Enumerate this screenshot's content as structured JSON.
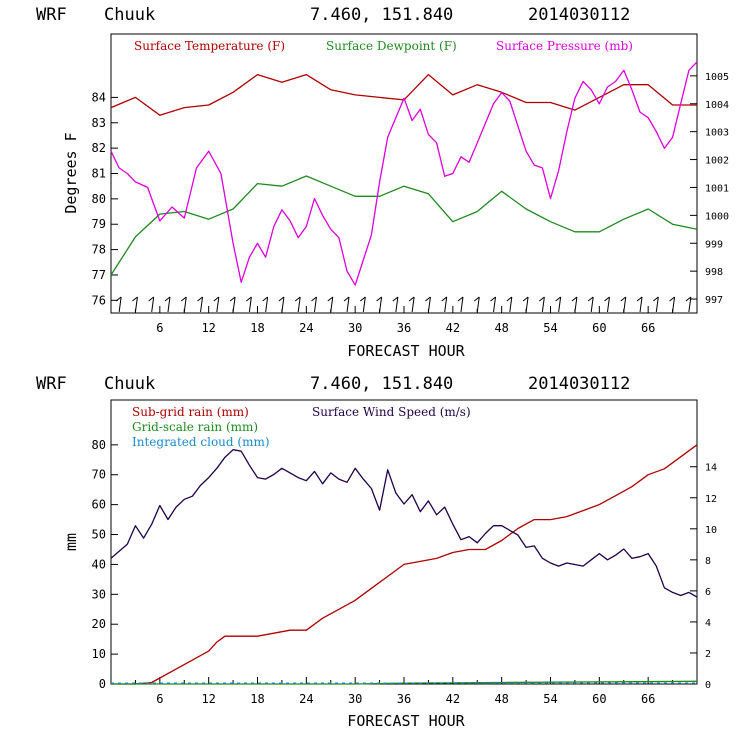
{
  "header_top": {
    "model": "WRF",
    "station": "Chuuk",
    "coords": "7.460, 151.840",
    "run": "2014030112"
  },
  "header_bottom": {
    "model": "WRF",
    "station": "Chuuk",
    "coords": "7.460, 151.840",
    "run": "2014030112"
  },
  "colors": {
    "temperature": "#b00000",
    "dewpoint": "#1f8a1f",
    "pressure": "#dd00dd",
    "subgrid_rain": "#b00000",
    "gridscale_rain": "#1f8a1f",
    "cloud": "#1a8ad0",
    "wind": "#22004a",
    "wind_barb": "#000000"
  },
  "chart_data": [
    {
      "type": "line",
      "xlabel": "FORECAST HOUR",
      "ylabel": "Degrees F",
      "xlim": [
        0,
        72
      ],
      "ylim": [
        75.5,
        86.5
      ],
      "y2lim": [
        996.5,
        1006.5
      ],
      "xticks": [
        6,
        12,
        18,
        24,
        30,
        36,
        42,
        48,
        54,
        60,
        66
      ],
      "yticks": [
        76,
        77,
        78,
        79,
        80,
        81,
        82,
        83,
        84
      ],
      "y2ticks": [
        997,
        998,
        999,
        1000,
        1001,
        1002,
        1003,
        1004,
        1005
      ],
      "series": [
        {
          "name": "Surface Temperature (F)",
          "axis": "left",
          "x": [
            0,
            3,
            6,
            9,
            12,
            15,
            18,
            21,
            24,
            27,
            30,
            33,
            36,
            39,
            42,
            45,
            48,
            51,
            54,
            57,
            60,
            63,
            66,
            69,
            72
          ],
          "y": [
            83.6,
            84.0,
            83.3,
            83.6,
            83.7,
            84.2,
            84.9,
            84.6,
            84.9,
            84.3,
            84.1,
            84.0,
            83.9,
            84.9,
            84.1,
            84.5,
            84.2,
            83.8,
            83.8,
            83.5,
            84.0,
            84.5,
            84.5,
            83.7,
            83.7
          ]
        },
        {
          "name": "Surface Dewpoint (F)",
          "axis": "left",
          "x": [
            0,
            3,
            6,
            9,
            12,
            15,
            18,
            21,
            24,
            27,
            30,
            33,
            36,
            39,
            42,
            45,
            48,
            51,
            54,
            57,
            60,
            63,
            66,
            69,
            72
          ],
          "y": [
            77.0,
            78.5,
            79.4,
            79.5,
            79.2,
            79.6,
            80.6,
            80.5,
            80.9,
            80.5,
            80.1,
            80.1,
            80.5,
            80.2,
            79.1,
            79.5,
            80.3,
            79.6,
            79.1,
            78.7,
            78.7,
            79.2,
            79.6,
            79.0,
            78.8
          ]
        },
        {
          "name": "Surface Pressure (mb)",
          "axis": "right",
          "x": [
            0,
            1,
            2,
            3,
            4.5,
            6,
            7.5,
            9,
            10.5,
            12,
            13.5,
            15,
            16,
            17,
            18,
            19,
            20,
            21,
            22,
            23,
            24,
            25,
            26,
            27,
            28,
            29,
            30,
            31,
            32,
            33,
            34,
            36,
            37,
            38,
            39,
            40,
            41,
            42,
            43,
            44,
            45,
            46,
            47,
            48,
            49,
            50,
            51,
            52,
            53,
            54,
            55,
            56,
            57,
            58,
            59,
            60,
            61,
            62,
            63,
            64,
            65,
            66,
            67,
            68,
            69,
            70,
            71,
            72
          ],
          "y": [
            1002.3,
            1001.7,
            1001.5,
            1001.2,
            1001.0,
            999.8,
            1000.3,
            999.9,
            1001.7,
            1002.3,
            1001.5,
            999.0,
            997.6,
            998.5,
            999.0,
            998.5,
            999.6,
            1000.2,
            999.8,
            999.2,
            999.6,
            1000.6,
            1000.0,
            999.5,
            999.2,
            998.0,
            997.5,
            998.4,
            999.3,
            1001.2,
            1002.8,
            1004.2,
            1003.4,
            1003.8,
            1002.9,
            1002.6,
            1001.4,
            1001.5,
            1002.1,
            1001.9,
            1002.6,
            1003.3,
            1004.0,
            1004.4,
            1004.1,
            1003.2,
            1002.3,
            1001.8,
            1001.7,
            1000.6,
            1001.6,
            1003.0,
            1004.2,
            1004.8,
            1004.5,
            1004.0,
            1004.6,
            1004.8,
            1005.2,
            1004.5,
            1003.7,
            1003.5,
            1003.0,
            1002.4,
            1002.8,
            1004.0,
            1005.2,
            1005.5
          ]
        }
      ]
    },
    {
      "type": "line",
      "xlabel": "FORECAST HOUR",
      "ylabel": "mm",
      "xlim": [
        0,
        72
      ],
      "ylim": [
        0,
        95
      ],
      "y2lim": [
        0,
        18.3
      ],
      "xticks": [
        6,
        12,
        18,
        24,
        30,
        36,
        42,
        48,
        54,
        60,
        66
      ],
      "yticks": [
        0,
        10,
        20,
        30,
        40,
        50,
        60,
        70,
        80
      ],
      "y2ticks": [
        0,
        2,
        4,
        6,
        8,
        10,
        12,
        14
      ],
      "series": [
        {
          "name": "Sub-grid rain (mm)",
          "axis": "left",
          "x": [
            0,
            3,
            5,
            6,
            8,
            10,
            12,
            13,
            14,
            18,
            20,
            22,
            24,
            26,
            28,
            30,
            32,
            34,
            36,
            38,
            40,
            42,
            44,
            46,
            48,
            50,
            52,
            54,
            56,
            58,
            60,
            62,
            64,
            66,
            68,
            70,
            72
          ],
          "y": [
            0,
            0,
            0.5,
            2,
            5,
            8,
            11,
            14,
            16,
            16,
            17,
            18,
            18,
            22,
            25,
            28,
            32,
            36,
            40,
            41,
            42,
            44,
            45,
            45,
            48,
            52,
            55,
            55,
            56,
            58,
            60,
            63,
            66,
            70,
            72,
            76,
            80
          ]
        },
        {
          "name": "Grid-scale rain (mm)",
          "axis": "left",
          "x": [
            0,
            30,
            36,
            48,
            60,
            72
          ],
          "y": [
            0,
            0,
            0.3,
            0.5,
            0.7,
            0.9
          ]
        },
        {
          "name": "Integrated cloud (mm)",
          "axis": "left",
          "x": [
            0,
            72
          ],
          "y": [
            0.3,
            0.3
          ]
        },
        {
          "name": "Surface Wind Speed (m/s)",
          "axis": "right",
          "x": [
            0,
            2,
            3,
            4,
            5,
            6,
            7,
            8,
            9,
            10,
            11,
            12,
            13,
            14,
            15,
            16,
            17,
            18,
            19,
            20,
            21,
            22,
            23,
            24,
            25,
            26,
            27,
            28,
            29,
            30,
            31,
            32,
            33,
            34,
            35,
            36,
            37,
            38,
            39,
            40,
            41,
            42,
            43,
            44,
            45,
            46,
            47,
            48,
            49,
            50,
            51,
            52,
            53,
            54,
            55,
            56,
            57,
            58,
            59,
            60,
            61,
            62,
            63,
            64,
            65,
            66,
            67,
            68,
            69,
            70,
            71,
            72
          ],
          "y": [
            8.1,
            9.0,
            10.2,
            9.4,
            10.3,
            11.5,
            10.6,
            11.4,
            11.9,
            12.1,
            12.8,
            13.3,
            13.9,
            14.6,
            15.1,
            15.0,
            14.1,
            13.3,
            13.2,
            13.5,
            13.9,
            13.6,
            13.3,
            13.1,
            13.7,
            12.9,
            13.6,
            13.2,
            13.0,
            13.9,
            13.2,
            12.6,
            11.2,
            13.8,
            12.3,
            11.6,
            12.2,
            11.1,
            11.8,
            10.9,
            11.4,
            10.3,
            9.3,
            9.5,
            9.1,
            9.7,
            10.2,
            10.2,
            9.9,
            9.6,
            8.8,
            8.9,
            8.1,
            7.8,
            7.6,
            7.8,
            7.7,
            7.6,
            8.0,
            8.4,
            8.0,
            8.3,
            8.7,
            8.1,
            8.2,
            8.4,
            7.6,
            6.2,
            5.9,
            5.7,
            5.9,
            5.6
          ]
        }
      ]
    }
  ]
}
